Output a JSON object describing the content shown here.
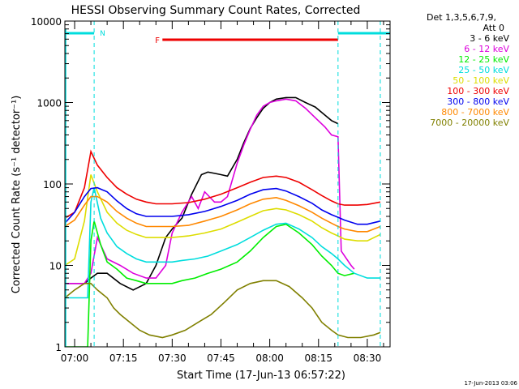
{
  "chart_data": {
    "type": "line",
    "title": "HESSI Observing Summary Count Rates, Corrected",
    "xlabel": "Start Time (17-Jun-13 06:57:22)",
    "ylabel": "Corrected Count Rate (s⁻¹ detector⁻¹)",
    "yscale": "log",
    "xlim": [
      "06:57",
      "08:37"
    ],
    "ylim": [
      1,
      10000
    ],
    "x_ticks": [
      "07:00",
      "07:15",
      "07:30",
      "07:45",
      "08:00",
      "08:15",
      "08:30"
    ],
    "y_ticks": [
      "1",
      "10",
      "100",
      "1000",
      "10000"
    ],
    "legend": {
      "header": [
        "Det 1,3,5,6,7,9,",
        "Att 0"
      ],
      "placement": "right"
    },
    "timestamp": "17-Jun-2013 03:06",
    "flags": [
      {
        "label": "N",
        "color": "#00dddd",
        "start": "06:57",
        "end": "07:06"
      },
      {
        "label": "N",
        "color": "#00dddd",
        "start": "08:21",
        "end": "08:37"
      },
      {
        "label": "F",
        "color": "#ee0000",
        "start": "07:27",
        "end": "08:21"
      }
    ],
    "flag_boundaries": [
      "07:06",
      "08:21",
      "08:34"
    ],
    "series": [
      {
        "name": "3 - 6 keV",
        "color": "#000000",
        "x": [
          "06:57",
          "07:03",
          "07:05",
          "07:07",
          "07:10",
          "07:14",
          "07:18",
          "07:22",
          "07:25",
          "07:28",
          "07:30",
          "07:33",
          "07:36",
          "07:39",
          "07:41",
          "07:43",
          "07:45",
          "07:47",
          "07:50",
          "07:52",
          "07:54",
          "07:56",
          "07:58",
          "08:00",
          "08:02",
          "08:05",
          "08:08",
          "08:11",
          "08:14",
          "08:17",
          "08:19",
          "08:21"
        ],
        "y": [
          6,
          6,
          7,
          8,
          8,
          6,
          5,
          6,
          10,
          22,
          28,
          38,
          75,
          130,
          140,
          135,
          130,
          125,
          200,
          320,
          480,
          650,
          850,
          1000,
          1100,
          1150,
          1150,
          1000,
          880,
          700,
          600,
          550
        ]
      },
      {
        "name": "6 - 12 keV",
        "color": "#dd00dd",
        "x": [
          "06:57",
          "07:03",
          "07:05",
          "07:07",
          "07:10",
          "07:14",
          "07:18",
          "07:22",
          "07:25",
          "07:28",
          "07:30",
          "07:33",
          "07:36",
          "07:38",
          "07:40",
          "07:43",
          "07:45",
          "07:47",
          "07:50",
          "07:52",
          "07:54",
          "07:56",
          "07:58",
          "08:00",
          "08:02",
          "08:05",
          "08:08",
          "08:11",
          "08:14",
          "08:17",
          "08:19",
          "08:21",
          "08:22",
          "08:25",
          "08:26"
        ],
        "y": [
          6,
          6,
          8,
          22,
          12,
          10,
          8,
          7,
          7,
          10,
          25,
          45,
          70,
          50,
          80,
          60,
          60,
          70,
          180,
          300,
          470,
          700,
          900,
          1000,
          1050,
          1100,
          1050,
          850,
          650,
          500,
          400,
          380,
          15,
          10,
          9
        ]
      },
      {
        "name": "12 - 25 keV",
        "color": "#00ee00",
        "x": [
          "06:57",
          "07:04",
          "07:05",
          "07:06",
          "07:08",
          "07:10",
          "07:13",
          "07:16",
          "07:19",
          "07:22",
          "07:25",
          "07:30",
          "07:33",
          "07:37",
          "07:41",
          "07:45",
          "07:50",
          "07:54",
          "07:58",
          "08:02",
          "08:05",
          "08:09",
          "08:13",
          "08:16",
          "08:19",
          "08:21",
          "08:23",
          "08:26"
        ],
        "y": [
          1,
          1,
          20,
          35,
          18,
          11,
          9,
          7,
          6.5,
          6,
          6,
          6,
          6.5,
          7,
          8,
          9,
          11,
          15,
          22,
          30,
          32,
          25,
          18,
          13,
          10,
          8,
          7.5,
          8
        ]
      },
      {
        "name": "25 - 50 keV",
        "color": "#00dddd",
        "x": [
          "06:57",
          "07:04",
          "07:05",
          "07:06",
          "07:08",
          "07:10",
          "07:13",
          "07:16",
          "07:19",
          "07:22",
          "07:25",
          "07:30",
          "07:33",
          "07:37",
          "07:41",
          "07:45",
          "07:50",
          "07:54",
          "07:58",
          "08:02",
          "08:05",
          "08:09",
          "08:13",
          "08:16",
          "08:19",
          "08:21",
          "08:23",
          "08:26",
          "08:30",
          "08:34"
        ],
        "y": [
          4,
          4,
          60,
          90,
          38,
          25,
          17,
          14,
          12,
          11,
          11,
          11,
          11.5,
          12,
          13,
          15,
          18,
          22,
          27,
          32,
          33,
          28,
          22,
          17,
          14,
          12,
          10,
          8,
          7,
          7
        ]
      },
      {
        "name": "50 - 100 keV",
        "color": "#dddd00",
        "x": [
          "06:57",
          "07:00",
          "07:03",
          "07:05",
          "07:07",
          "07:10",
          "07:13",
          "07:16",
          "07:19",
          "07:22",
          "07:25",
          "07:30",
          "07:35",
          "07:40",
          "07:45",
          "07:50",
          "07:54",
          "07:58",
          "08:02",
          "08:05",
          "08:09",
          "08:13",
          "08:16",
          "08:19",
          "08:21",
          "08:23",
          "08:27",
          "08:30",
          "08:34"
        ],
        "y": [
          10,
          12,
          35,
          130,
          80,
          45,
          33,
          27,
          24,
          22,
          22,
          22,
          23,
          25,
          28,
          34,
          40,
          47,
          50,
          48,
          42,
          35,
          29,
          25,
          23,
          21,
          20,
          20,
          24
        ]
      },
      {
        "name": "100 - 300 keV",
        "color": "#ee0000",
        "x": [
          "06:57",
          "07:00",
          "07:03",
          "07:05",
          "07:07",
          "07:10",
          "07:13",
          "07:16",
          "07:19",
          "07:22",
          "07:25",
          "07:30",
          "07:35",
          "07:40",
          "07:45",
          "07:50",
          "07:54",
          "07:58",
          "08:02",
          "08:05",
          "08:09",
          "08:13",
          "08:16",
          "08:19",
          "08:21",
          "08:23",
          "08:27",
          "08:30",
          "08:34"
        ],
        "y": [
          38,
          45,
          90,
          250,
          170,
          120,
          90,
          75,
          65,
          60,
          57,
          57,
          59,
          65,
          75,
          90,
          105,
          120,
          125,
          120,
          105,
          85,
          72,
          62,
          57,
          55,
          55,
          56,
          60
        ]
      },
      {
        "name": "300 - 800 keV",
        "color": "#0000ee",
        "x": [
          "06:57",
          "07:00",
          "07:03",
          "07:05",
          "07:07",
          "07:10",
          "07:13",
          "07:16",
          "07:19",
          "07:22",
          "07:25",
          "07:30",
          "07:35",
          "07:40",
          "07:45",
          "07:50",
          "07:54",
          "07:58",
          "08:02",
          "08:05",
          "08:09",
          "08:13",
          "08:16",
          "08:19",
          "08:21",
          "08:23",
          "08:27",
          "08:30",
          "08:34"
        ],
        "y": [
          33,
          45,
          70,
          88,
          90,
          80,
          62,
          50,
          43,
          40,
          40,
          40,
          42,
          46,
          53,
          63,
          75,
          85,
          88,
          82,
          70,
          58,
          48,
          42,
          39,
          36,
          32,
          32,
          35
        ]
      },
      {
        "name": "800 - 7000 keV",
        "color": "#ff8800",
        "x": [
          "06:57",
          "07:00",
          "07:03",
          "07:05",
          "07:07",
          "07:10",
          "07:13",
          "07:16",
          "07:19",
          "07:22",
          "07:25",
          "07:30",
          "07:35",
          "07:40",
          "07:45",
          "07:50",
          "07:54",
          "07:58",
          "08:02",
          "08:05",
          "08:09",
          "08:13",
          "08:16",
          "08:19",
          "08:21",
          "08:23",
          "08:27",
          "08:30",
          "08:34"
        ],
        "y": [
          30,
          36,
          55,
          70,
          70,
          60,
          46,
          38,
          33,
          30,
          30,
          30,
          31,
          35,
          40,
          48,
          57,
          65,
          68,
          63,
          54,
          45,
          38,
          33,
          30,
          28,
          26,
          26,
          30
        ]
      },
      {
        "name": "7000 - 20000 keV",
        "color": "#808000",
        "x": [
          "06:57",
          "07:00",
          "07:03",
          "07:05",
          "07:07",
          "07:10",
          "07:12",
          "07:14",
          "07:17",
          "07:20",
          "07:23",
          "07:27",
          "07:30",
          "07:34",
          "07:38",
          "07:42",
          "07:46",
          "07:50",
          "07:54",
          "07:58",
          "08:02",
          "08:06",
          "08:10",
          "08:13",
          "08:16",
          "08:19",
          "08:21",
          "08:24",
          "08:28",
          "08:32",
          "08:34"
        ],
        "y": [
          4,
          5,
          6,
          6,
          5,
          4,
          3,
          2.5,
          2,
          1.6,
          1.4,
          1.3,
          1.4,
          1.6,
          2,
          2.5,
          3.5,
          5,
          6,
          6.5,
          6.5,
          5.5,
          4,
          3,
          2,
          1.6,
          1.4,
          1.3,
          1.3,
          1.4,
          1.5
        ]
      }
    ]
  }
}
